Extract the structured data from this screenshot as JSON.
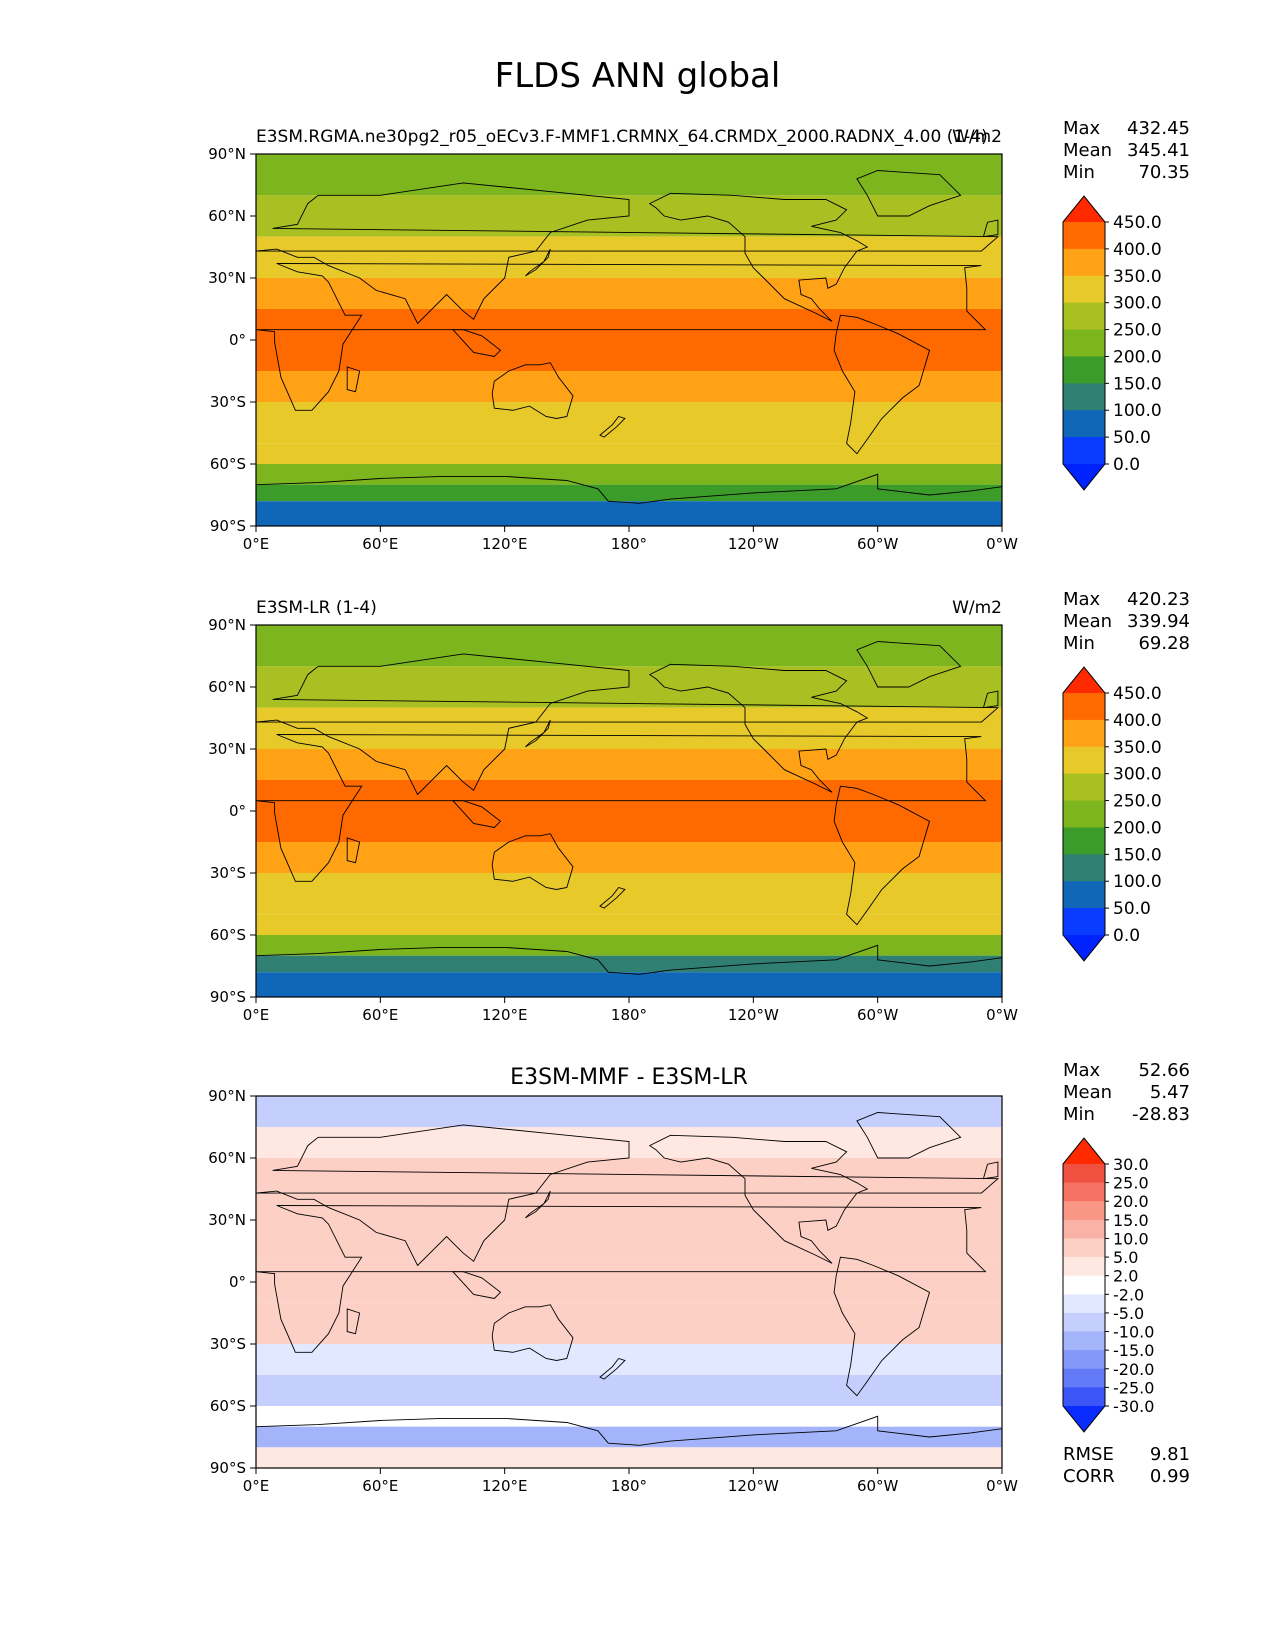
{
  "figure_title": "FLDS ANN global",
  "chart_data": [
    {
      "type": "heatmap",
      "panel": "test",
      "title_left": "E3SM.RGMA.ne30pg2_r05_oECv3.F-MMF1.CRMNX_64.CRMDX_2000.RADNX_4.00 (1-4)",
      "title_center": "",
      "title_right": "W/m2",
      "stats": [
        {
          "label": "Max",
          "value": "432.45"
        },
        {
          "label": "Mean",
          "value": "345.41"
        },
        {
          "label": "Min",
          "value": "70.35"
        }
      ],
      "xticks": [
        "0°E",
        "60°E",
        "120°E",
        "180°",
        "120°W",
        "60°W",
        "0°W"
      ],
      "yticks": [
        "90°N",
        "60°N",
        "30°N",
        "0°",
        "30°S",
        "60°S",
        "90°S"
      ],
      "xlim": [
        0,
        360
      ],
      "ylim": [
        -90,
        90
      ],
      "levels": [
        "450.0",
        "400.0",
        "350.0",
        "300.0",
        "250.0",
        "200.0",
        "150.0",
        "100.0",
        "50.0",
        "0.0"
      ],
      "colorbar_colors": [
        "#ff2a00",
        "#ff6a00",
        "#ffa216",
        "#e8c92a",
        "#a8c021",
        "#7cb51e",
        "#3c9c2a",
        "#2f8072",
        "#1067b8",
        "#0a3cff",
        "#0022ff"
      ],
      "lat_bands": [
        {
          "lat": [
            70,
            90
          ],
          "value": 240
        },
        {
          "lat": [
            50,
            70
          ],
          "value": 290
        },
        {
          "lat": [
            30,
            50
          ],
          "value": 330
        },
        {
          "lat": [
            15,
            30
          ],
          "value": 365
        },
        {
          "lat": [
            -15,
            15
          ],
          "value": 405
        },
        {
          "lat": [
            -30,
            -15
          ],
          "value": 365
        },
        {
          "lat": [
            -50,
            -30
          ],
          "value": 340
        },
        {
          "lat": [
            -60,
            -50
          ],
          "value": 300
        },
        {
          "lat": [
            -70,
            -60
          ],
          "value": 240
        },
        {
          "lat": [
            -78,
            -70
          ],
          "value": 150
        },
        {
          "lat": [
            -90,
            -78
          ],
          "value": 95
        }
      ],
      "footer_stats": []
    },
    {
      "type": "heatmap",
      "panel": "reference",
      "title_left": "E3SM-LR (1-4)",
      "title_center": "",
      "title_right": "W/m2",
      "stats": [
        {
          "label": "Max",
          "value": "420.23"
        },
        {
          "label": "Mean",
          "value": "339.94"
        },
        {
          "label": "Min",
          "value": "69.28"
        }
      ],
      "xticks": [
        "0°E",
        "60°E",
        "120°E",
        "180°",
        "120°W",
        "60°W",
        "0°W"
      ],
      "yticks": [
        "90°N",
        "60°N",
        "30°N",
        "0°",
        "30°S",
        "60°S",
        "90°S"
      ],
      "xlim": [
        0,
        360
      ],
      "ylim": [
        -90,
        90
      ],
      "levels": [
        "450.0",
        "400.0",
        "350.0",
        "300.0",
        "250.0",
        "200.0",
        "150.0",
        "100.0",
        "50.0",
        "0.0"
      ],
      "colorbar_colors": [
        "#ff2a00",
        "#ff6a00",
        "#ffa216",
        "#e8c92a",
        "#a8c021",
        "#7cb51e",
        "#3c9c2a",
        "#2f8072",
        "#1067b8",
        "#0a3cff",
        "#0022ff"
      ],
      "lat_bands": [
        {
          "lat": [
            70,
            90
          ],
          "value": 235
        },
        {
          "lat": [
            50,
            70
          ],
          "value": 285
        },
        {
          "lat": [
            30,
            50
          ],
          "value": 325
        },
        {
          "lat": [
            15,
            30
          ],
          "value": 360
        },
        {
          "lat": [
            -15,
            15
          ],
          "value": 400
        },
        {
          "lat": [
            -30,
            -15
          ],
          "value": 360
        },
        {
          "lat": [
            -50,
            -30
          ],
          "value": 335
        },
        {
          "lat": [
            -60,
            -50
          ],
          "value": 300
        },
        {
          "lat": [
            -70,
            -60
          ],
          "value": 235
        },
        {
          "lat": [
            -78,
            -70
          ],
          "value": 145
        },
        {
          "lat": [
            -90,
            -78
          ],
          "value": 92
        }
      ],
      "footer_stats": []
    },
    {
      "type": "heatmap",
      "panel": "difference",
      "title_left": "",
      "title_center": "E3SM-MMF - E3SM-LR",
      "title_right": "",
      "stats": [
        {
          "label": "Max",
          "value": "52.66"
        },
        {
          "label": "Mean",
          "value": "5.47"
        },
        {
          "label": "Min",
          "value": "-28.83"
        }
      ],
      "xticks": [
        "0°E",
        "60°E",
        "120°E",
        "180°",
        "120°W",
        "60°W",
        "0°W"
      ],
      "yticks": [
        "90°N",
        "60°N",
        "30°N",
        "0°",
        "30°S",
        "60°S",
        "90°S"
      ],
      "xlim": [
        0,
        360
      ],
      "ylim": [
        -90,
        90
      ],
      "levels": [
        "30.0",
        "25.0",
        "20.0",
        "15.0",
        "10.0",
        "5.0",
        "2.0",
        "-2.0",
        "-5.0",
        "-10.0",
        "-15.0",
        "-20.0",
        "-25.0",
        "-30.0"
      ],
      "colorbar_colors": [
        "#ff2a00",
        "#f05040",
        "#f67364",
        "#fa9684",
        "#fbb2a6",
        "#fdd0c6",
        "#ffe8e2",
        "#ffffff",
        "#e2e8ff",
        "#c4cffd",
        "#a4b4fb",
        "#8498fa",
        "#6279f8",
        "#3b55f7",
        "#0a2cff"
      ],
      "lat_bands": [
        {
          "lat": [
            75,
            90
          ],
          "value": -8
        },
        {
          "lat": [
            60,
            75
          ],
          "value": 3
        },
        {
          "lat": [
            30,
            60
          ],
          "value": 9
        },
        {
          "lat": [
            10,
            30
          ],
          "value": 6
        },
        {
          "lat": [
            -10,
            10
          ],
          "value": 8
        },
        {
          "lat": [
            -30,
            -10
          ],
          "value": 5
        },
        {
          "lat": [
            -45,
            -30
          ],
          "value": -3
        },
        {
          "lat": [
            -60,
            -45
          ],
          "value": -9
        },
        {
          "lat": [
            -70,
            -60
          ],
          "value": 1
        },
        {
          "lat": [
            -80,
            -70
          ],
          "value": -12
        },
        {
          "lat": [
            -90,
            -80
          ],
          "value": 4
        }
      ],
      "footer_stats": [
        {
          "label": "RMSE",
          "value": "9.81"
        },
        {
          "label": "CORR",
          "value": "0.99"
        }
      ]
    }
  ]
}
